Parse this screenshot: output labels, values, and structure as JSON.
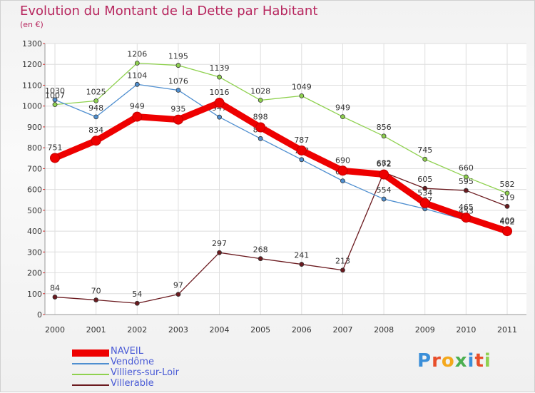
{
  "header": {
    "title": "Evolution du Montant de la Dette par Habitant",
    "subtitle": "(en €)"
  },
  "logo": {
    "text": "Proxiti"
  },
  "chart_data": {
    "type": "line",
    "title": "Evolution du Montant de la Dette par Habitant",
    "subtitle": "(en €)",
    "x": [
      "2000",
      "2001",
      "2002",
      "2003",
      "2004",
      "2005",
      "2006",
      "2007",
      "2008",
      "2009",
      "2010",
      "2011"
    ],
    "ylim": [
      0,
      1300
    ],
    "yticks": [
      "0",
      "100",
      "200",
      "300",
      "400",
      "500",
      "600",
      "700",
      "800",
      "900",
      "1000",
      "1100",
      "1200",
      "1300"
    ],
    "grid": true,
    "legend_placement": "bottom-left",
    "series": [
      {
        "name": "Villerable",
        "color": "#6b1a1f",
        "values": [
          84,
          70,
          54,
          97,
          297,
          268,
          241,
          213,
          682,
          605,
          595,
          519
        ],
        "labels": [
          "84",
          "70",
          "54",
          "97",
          "297",
          "268",
          "241",
          "213",
          "682",
          "605",
          "595",
          "519"
        ]
      },
      {
        "name": "Villiers-sur-Loir",
        "color": "#8fd14f",
        "values": [
          1007,
          1025,
          1206,
          1195,
          1139,
          1028,
          1049,
          949,
          856,
          745,
          660,
          582
        ],
        "labels": [
          "1007",
          "1025",
          "1206",
          "1195",
          "1139",
          "1028",
          "1049",
          "949",
          "856",
          "745",
          "660",
          "582"
        ]
      },
      {
        "name": "Vendôme",
        "color": "#4f8fd0",
        "values": [
          1030,
          948,
          1104,
          1076,
          947,
          844,
          743,
          641,
          554,
          507,
          453,
          402
        ],
        "labels": [
          "1030",
          "948",
          "1104",
          "1076",
          "947",
          "844",
          "743",
          "641",
          "554",
          "507",
          "453",
          "402"
        ]
      },
      {
        "name": "NAVEIL",
        "color": "#ee0000",
        "values": [
          751,
          834,
          949,
          935,
          1016,
          898,
          787,
          690,
          672,
          534,
          465,
          400
        ],
        "labels": [
          "751",
          "834",
          "949",
          "935",
          "1016",
          "898",
          "787",
          "690",
          "672",
          "534",
          "465",
          "400"
        ]
      }
    ],
    "legend": [
      "NAVEIL",
      "Vendôme",
      "Villiers-sur-Loir",
      "Villerable"
    ]
  }
}
